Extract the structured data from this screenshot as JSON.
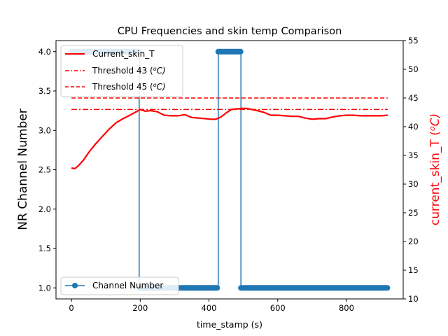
{
  "chart_data": {
    "type": "line",
    "title": "CPU Frequencies and skin temp Comparison",
    "xlabel": "time_stamp (s)",
    "ylabel_left": "NR Channel Number",
    "ylabel_right": "current_skin_T (",
    "ylabel_right_sup": "o",
    "ylabel_right_unit": "C)",
    "xlim": [
      -45,
      965
    ],
    "ylim_left": [
      0.86,
      4.14
    ],
    "ylim_right": [
      10,
      55
    ],
    "x_ticks": [
      0,
      200,
      400,
      600,
      800
    ],
    "y_ticks_left": [
      1.0,
      1.5,
      2.0,
      2.5,
      3.0,
      3.5,
      4.0
    ],
    "y_ticks_right": [
      10,
      15,
      20,
      25,
      30,
      35,
      40,
      45,
      50,
      55
    ],
    "grid": false,
    "series": [
      {
        "name": "Channel Number",
        "axis": "left",
        "color": "#1f77b4",
        "marker": "circle",
        "segments": [
          {
            "x": [
              0,
              3,
              6,
              9,
              12,
              15,
              18,
              21,
              24,
              27,
              30,
              33,
              36,
              39,
              42,
              45,
              48,
              51,
              54,
              57,
              60,
              63,
              66,
              69,
              72,
              75,
              78,
              81,
              84,
              87,
              90,
              93,
              96,
              99,
              102,
              105,
              108,
              111,
              114,
              117,
              120,
              123,
              126,
              129,
              132,
              135,
              138,
              141,
              144,
              147,
              150,
              153,
              156,
              159,
              162,
              165,
              168,
              171,
              174,
              177,
              180,
              183,
              186,
              189,
              192,
              195
            ],
            "y": 4.0
          },
          {
            "x": [
              197
            ],
            "y": [
              4.0,
              1.0
            ]
          },
          {
            "x": [
              199,
              202,
              205,
              208,
              211,
              214,
              217,
              220,
              223,
              226,
              229,
              232,
              235,
              238,
              241,
              244,
              247,
              250,
              253,
              256,
              259,
              262,
              265,
              268,
              271,
              274,
              277,
              280,
              283,
              286,
              289,
              292,
              295,
              298,
              301,
              304,
              307,
              310,
              313,
              316,
              319,
              322,
              325,
              328,
              331,
              334,
              337,
              340,
              343,
              346,
              349,
              352,
              355,
              358,
              361,
              364,
              367,
              370,
              373,
              376,
              379,
              382,
              385,
              388,
              391,
              394,
              397,
              400,
              403,
              406,
              409,
              412,
              415,
              418,
              421,
              424
            ],
            "y": 1.0
          },
          {
            "x": [
              427
            ],
            "y": [
              1.0,
              4.0
            ]
          },
          {
            "x": [
              427,
              430,
              433,
              436,
              439,
              442,
              445,
              448,
              451,
              454,
              457,
              460,
              463,
              466,
              469,
              472,
              475,
              478,
              481,
              484,
              487,
              490,
              492
            ],
            "y": 4.0
          },
          {
            "x": [
              493
            ],
            "y": [
              4.0,
              1.0
            ]
          },
          {
            "x": [
              493,
              496,
              499,
              502,
              505,
              508,
              511,
              514,
              517,
              520,
              523,
              526,
              529,
              532,
              535,
              538,
              541,
              544,
              547,
              550,
              553,
              556,
              559,
              562,
              565,
              568,
              571,
              574,
              577,
              580,
              583,
              586,
              589,
              592,
              595,
              598,
              601,
              604,
              607,
              610,
              613,
              616,
              619,
              622,
              625,
              628,
              631,
              634,
              637,
              640,
              643,
              646,
              649,
              652,
              655,
              658,
              661,
              664,
              667,
              670,
              673,
              676,
              679,
              682,
              685,
              688,
              691,
              694,
              697,
              700,
              703,
              706,
              709,
              712,
              715,
              718,
              721,
              724,
              727,
              730,
              733,
              736,
              739,
              742,
              745,
              748,
              751,
              754,
              757,
              760,
              763,
              766,
              769,
              772,
              775,
              778,
              781,
              784,
              787,
              790,
              793,
              796,
              799,
              802,
              805,
              808,
              811,
              814,
              817,
              820,
              823,
              826,
              829,
              832,
              835,
              838,
              841,
              844,
              847,
              850,
              853,
              856,
              859,
              862,
              865,
              868,
              871,
              874,
              877,
              880,
              883,
              886,
              889,
              892,
              895,
              898,
              901,
              904,
              907,
              910,
              913,
              916,
              919
            ],
            "y": 1.0
          }
        ]
      },
      {
        "name": "Current_skin_T",
        "axis": "right",
        "color": "#ff0000",
        "x": [
          0,
          10,
          20,
          35,
          50,
          70,
          90,
          110,
          130,
          150,
          170,
          185,
          200,
          215,
          230,
          250,
          270,
          290,
          310,
          330,
          350,
          370,
          390,
          405,
          420,
          435,
          450,
          465,
          480,
          495,
          510,
          525,
          540,
          560,
          580,
          600,
          620,
          640,
          660,
          680,
          700,
          720,
          740,
          760,
          780,
          800,
          820,
          840,
          860,
          880,
          900,
          920
        ],
        "y": [
          32.8,
          32.7,
          33.2,
          34.2,
          35.5,
          37.0,
          38.3,
          39.6,
          40.7,
          41.4,
          42.0,
          42.5,
          43.0,
          42.7,
          42.8,
          42.6,
          42.0,
          41.9,
          41.9,
          42.1,
          41.6,
          41.5,
          41.4,
          41.3,
          41.3,
          41.7,
          42.4,
          43.0,
          43.1,
          43.2,
          43.2,
          43.0,
          42.8,
          42.5,
          42.0,
          42.0,
          41.9,
          41.8,
          41.8,
          41.5,
          41.3,
          41.4,
          41.4,
          41.7,
          41.9,
          42.0,
          42.0,
          41.9,
          41.9,
          41.9,
          41.9,
          42.0
        ]
      },
      {
        "name": "Threshold 43 (",
        "name_sup": "o",
        "name_unit": "C)",
        "axis": "right",
        "color": "#ff0000",
        "linestyle": "dashdot",
        "x": [
          0,
          920
        ],
        "y": [
          43,
          43
        ]
      },
      {
        "name": "Threshold 45 (",
        "name_sup": "o",
        "name_unit": "C)",
        "axis": "right",
        "color": "#ff0000",
        "linestyle": "dashed",
        "x": [
          0,
          920
        ],
        "y": [
          45,
          45
        ]
      }
    ],
    "legends": [
      {
        "placement": "upper left",
        "entries": [
          "Current_skin_T",
          "Threshold 43",
          "Threshold 45"
        ]
      },
      {
        "placement": "lower left",
        "entries": [
          "Channel Number"
        ]
      }
    ]
  }
}
